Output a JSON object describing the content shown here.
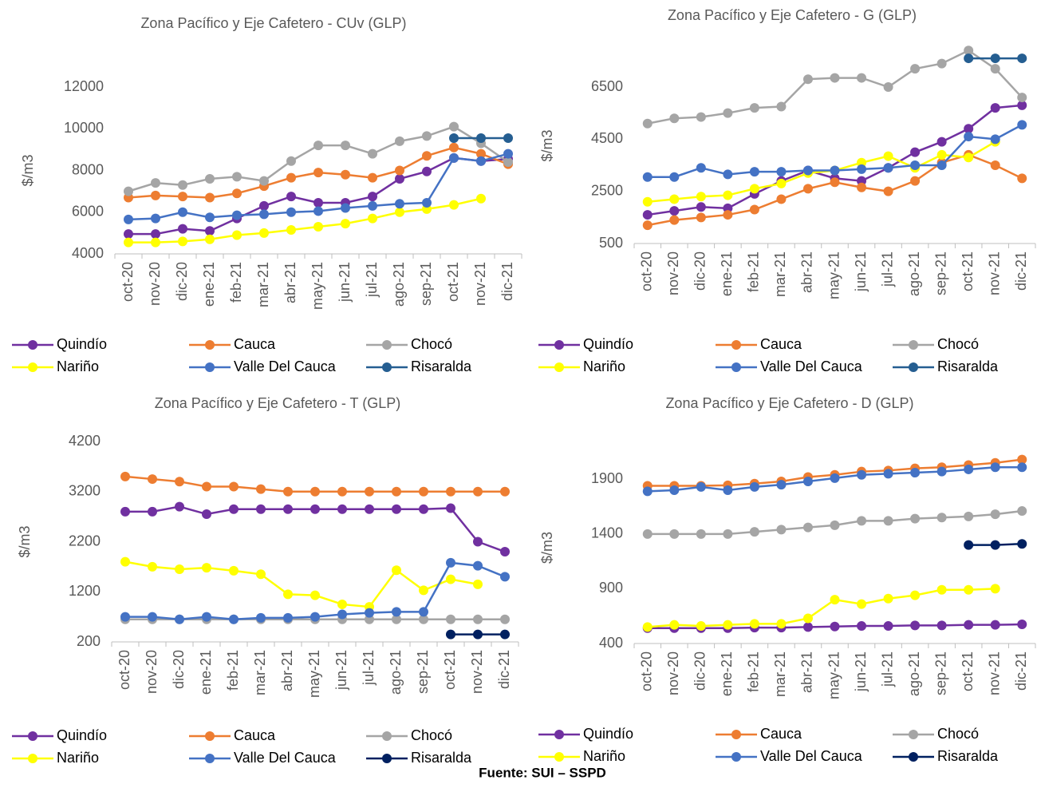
{
  "chart_data": [
    {
      "type": "line",
      "title": "Zona Pacífico y Eje Cafetero - CUv (GLP)",
      "y_label": "$/m3",
      "categories": [
        "oct-20",
        "nov-20",
        "dic-20",
        "ene-21",
        "feb-21",
        "mar-21",
        "abr-21",
        "may-21",
        "jun-21",
        "jul-21",
        "ago-21",
        "sep-21",
        "oct-21",
        "nov-21",
        "dic-21"
      ],
      "ylim": [
        4000,
        12000
      ],
      "yticks": [
        4000,
        6000,
        8000,
        10000,
        12000
      ],
      "series": [
        {
          "name": "Quindío",
          "color": "#7030a0",
          "values": [
            4950,
            4950,
            5200,
            5100,
            5700,
            6300,
            6750,
            6450,
            6450,
            6750,
            7600,
            7950,
            8600,
            8450,
            8550
          ]
        },
        {
          "name": "Cauca",
          "color": "#ed7d31",
          "values": [
            6700,
            6800,
            6750,
            6700,
            6900,
            7250,
            7650,
            7900,
            7800,
            7650,
            8000,
            8700,
            9100,
            8800,
            8300
          ]
        },
        {
          "name": "Chocó",
          "color": "#a5a5a5",
          "values": [
            7000,
            7400,
            7300,
            7600,
            7700,
            7500,
            8450,
            9200,
            9200,
            8800,
            9400,
            9650,
            10100,
            9300,
            8400
          ]
        },
        {
          "name": "Nariño",
          "color": "#ffff00",
          "values": [
            4550,
            4550,
            4600,
            4700,
            4900,
            5000,
            5150,
            5300,
            5450,
            5700,
            6000,
            6150,
            6350,
            6650,
            null
          ]
        },
        {
          "name": "Valle Del Cauca",
          "color": "#4472c4",
          "values": [
            5650,
            5700,
            6000,
            5750,
            5850,
            5900,
            6000,
            6050,
            6200,
            6300,
            6400,
            6450,
            8600,
            8450,
            8800
          ]
        },
        {
          "name": "Risaralda",
          "color": "#255e91",
          "values": [
            null,
            null,
            null,
            null,
            null,
            null,
            null,
            null,
            null,
            null,
            null,
            null,
            9550,
            9550,
            9550
          ]
        }
      ]
    },
    {
      "type": "line",
      "title": "Zona Pacífico y Eje Cafetero  - G (GLP)",
      "y_label": "$/m3",
      "categories": [
        "oct-20",
        "nov-20",
        "dic-20",
        "ene-21",
        "feb-21",
        "mar-21",
        "abr-21",
        "may-21",
        "jun-21",
        "jul-21",
        "ago-21",
        "sep-21",
        "oct-21",
        "nov-21",
        "dic-21"
      ],
      "ylim": [
        500,
        8000
      ],
      "yticks": [
        500,
        2500,
        4500,
        6500
      ],
      "series": [
        {
          "name": "Quindío",
          "color": "#7030a0",
          "values": [
            1600,
            1750,
            1900,
            1850,
            2400,
            2900,
            3300,
            3000,
            2900,
            3400,
            4000,
            4400,
            4900,
            5700,
            5800
          ]
        },
        {
          "name": "Cauca",
          "color": "#ed7d31",
          "values": [
            1200,
            1400,
            1500,
            1600,
            1800,
            2200,
            2600,
            2850,
            2650,
            2500,
            2900,
            3600,
            3900,
            3500,
            3000
          ]
        },
        {
          "name": "Chocó",
          "color": "#a5a5a5",
          "values": [
            5100,
            5300,
            5350,
            5500,
            5700,
            5750,
            6800,
            6850,
            6850,
            6500,
            7200,
            7400,
            7900,
            7200,
            6100
          ]
        },
        {
          "name": "Nariño",
          "color": "#ffff00",
          "values": [
            2100,
            2200,
            2300,
            2350,
            2600,
            2800,
            3200,
            3300,
            3600,
            3850,
            3400,
            3900,
            3800,
            4400,
            null
          ]
        },
        {
          "name": "Valle Del Cauca",
          "color": "#4472c4",
          "values": [
            3050,
            3050,
            3400,
            3150,
            3250,
            3250,
            3300,
            3300,
            3350,
            3400,
            3500,
            3500,
            4600,
            4500,
            5050
          ]
        },
        {
          "name": "Risaralda",
          "color": "#255e91",
          "values": [
            null,
            null,
            null,
            null,
            null,
            null,
            null,
            null,
            null,
            null,
            null,
            null,
            7600,
            7600,
            7600
          ]
        }
      ]
    },
    {
      "type": "line",
      "title": "Zona Pacífico y Eje Cafetero  - T (GLP)",
      "y_label": "$/m3",
      "categories": [
        "oct-20",
        "nov-20",
        "dic-20",
        "ene-21",
        "feb-21",
        "mar-21",
        "abr-21",
        "may-21",
        "jun-21",
        "jul-21",
        "ago-21",
        "sep-21",
        "oct-21",
        "nov-21",
        "dic-21"
      ],
      "ylim": [
        200,
        4200
      ],
      "yticks": [
        200,
        1200,
        2200,
        3200,
        4200
      ],
      "series": [
        {
          "name": "Quindío",
          "color": "#7030a0",
          "values": [
            2800,
            2800,
            2900,
            2750,
            2850,
            2850,
            2850,
            2850,
            2850,
            2850,
            2850,
            2850,
            2870,
            2200,
            2000
          ]
        },
        {
          "name": "Cauca",
          "color": "#ed7d31",
          "values": [
            3500,
            3450,
            3400,
            3300,
            3300,
            3250,
            3200,
            3200,
            3200,
            3200,
            3200,
            3200,
            3200,
            3200,
            3200
          ]
        },
        {
          "name": "Chocó",
          "color": "#a5a5a5",
          "values": [
            650,
            650,
            650,
            650,
            650,
            650,
            650,
            650,
            650,
            650,
            650,
            650,
            650,
            650,
            650
          ]
        },
        {
          "name": "Nariño",
          "color": "#ffff00",
          "values": [
            1800,
            1700,
            1650,
            1680,
            1620,
            1550,
            1150,
            1130,
            950,
            900,
            1630,
            1230,
            1450,
            1350,
            null
          ]
        },
        {
          "name": "Valle Del Cauca",
          "color": "#4472c4",
          "values": [
            700,
            700,
            650,
            700,
            650,
            680,
            680,
            700,
            750,
            780,
            800,
            800,
            1780,
            1720,
            1500
          ]
        },
        {
          "name": "Risaralda",
          "color": "#002060",
          "values": [
            null,
            null,
            null,
            null,
            null,
            null,
            null,
            null,
            null,
            null,
            null,
            null,
            350,
            350,
            350
          ]
        }
      ]
    },
    {
      "type": "line",
      "title": "Zona Pacífico y Eje Cafetero  - D (GLP)",
      "y_label": "$/m3",
      "categories": [
        "oct-20",
        "nov-20",
        "dic-20",
        "ene-21",
        "feb-21",
        "mar-21",
        "abr-21",
        "may-21",
        "jun-21",
        "jul-21",
        "ago-21",
        "sep-21",
        "oct-21",
        "nov-21",
        "dic-21"
      ],
      "ylim": [
        400,
        2150
      ],
      "yticks": [
        400,
        900,
        1400,
        1900
      ],
      "series": [
        {
          "name": "Quindío",
          "color": "#7030a0",
          "values": [
            540,
            540,
            540,
            540,
            545,
            545,
            550,
            555,
            560,
            560,
            565,
            565,
            570,
            570,
            575
          ]
        },
        {
          "name": "Cauca",
          "color": "#ed7d31",
          "values": [
            1840,
            1840,
            1840,
            1845,
            1860,
            1880,
            1920,
            1940,
            1970,
            1980,
            2000,
            2010,
            2030,
            2050,
            2080
          ]
        },
        {
          "name": "Chocó",
          "color": "#a5a5a5",
          "values": [
            1400,
            1400,
            1400,
            1400,
            1420,
            1440,
            1460,
            1480,
            1520,
            1520,
            1540,
            1550,
            1560,
            1580,
            1610
          ]
        },
        {
          "name": "Nariño",
          "color": "#ffff00",
          "values": [
            550,
            570,
            560,
            570,
            580,
            580,
            630,
            800,
            760,
            810,
            840,
            890,
            890,
            900,
            null
          ]
        },
        {
          "name": "Valle Del Cauca",
          "color": "#4472c4",
          "values": [
            1790,
            1800,
            1830,
            1800,
            1830,
            1850,
            1880,
            1910,
            1940,
            1950,
            1960,
            1970,
            1990,
            2010,
            2010
          ]
        },
        {
          "name": "Risaralda",
          "color": "#002060",
          "values": [
            null,
            null,
            null,
            null,
            null,
            null,
            null,
            null,
            null,
            null,
            null,
            null,
            1300,
            1300,
            1310
          ]
        }
      ]
    }
  ],
  "source": "Fuente: SUI – SSPD"
}
